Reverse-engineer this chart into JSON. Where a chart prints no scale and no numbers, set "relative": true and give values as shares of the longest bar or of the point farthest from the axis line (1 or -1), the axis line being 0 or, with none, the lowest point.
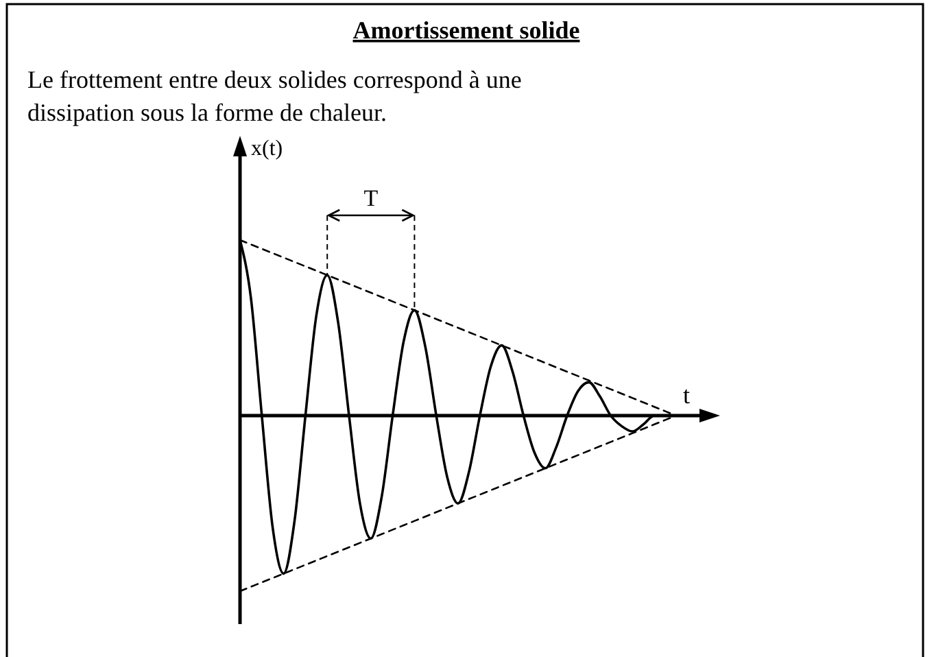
{
  "chart_data": {
    "type": "line",
    "relative": true,
    "title": "Amortissement solide",
    "subtitle": "Le frottement entre deux solides correspond à une dissipation sous la forme de chaleur.",
    "xlabel": "t",
    "ylabel": "x(t)",
    "annotations": [
      "T"
    ],
    "categories": [
      null,
      null,
      null,
      null,
      null,
      null,
      null,
      null,
      null,
      null,
      null,
      null,
      null,
      null,
      null,
      null,
      null,
      null,
      null,
      null,
      null,
      null,
      null,
      null,
      null,
      null,
      null,
      null,
      null,
      null,
      null,
      null,
      null,
      null,
      null,
      null,
      null,
      null,
      null,
      null,
      null
    ],
    "series": [
      {
        "color": "#000000",
        "line_style": "solid",
        "values": [
          1,
          0.67,
          0,
          -0.64,
          -0.9,
          -0.6,
          0,
          0.57,
          0.8,
          0.53,
          0,
          -0.5,
          -0.7,
          -0.46,
          0,
          0.42,
          0.6,
          0.39,
          0,
          -0.35,
          -0.5,
          -0.32,
          0,
          0.28,
          0.4,
          0.25,
          0,
          -0.21,
          -0.3,
          -0.18,
          0,
          0.14,
          0.19,
          0.11,
          0,
          -0.06,
          -0.09,
          -0.05,
          0,
          0,
          0
        ]
      },
      {
        "color": "#000000",
        "line_style": "dashed",
        "values": [
          1,
          0.975,
          0.95,
          0.925,
          0.9,
          0.875,
          0.85,
          0.825,
          0.8,
          0.775,
          0.75,
          0.725,
          0.7,
          0.675,
          0.65,
          0.625,
          0.6,
          0.575,
          0.55,
          0.525,
          0.5,
          0.475,
          0.45,
          0.425,
          0.4,
          0.375,
          0.35,
          0.325,
          0.3,
          0.275,
          0.25,
          0.225,
          0.2,
          0.175,
          0.15,
          0.125,
          0.1,
          0.075,
          0.05,
          0.025,
          0
        ]
      },
      {
        "color": "#000000",
        "line_style": "dashed",
        "values": [
          -1,
          -0.975,
          -0.95,
          -0.925,
          -0.9,
          -0.875,
          -0.85,
          -0.825,
          -0.8,
          -0.775,
          -0.75,
          -0.725,
          -0.7,
          -0.675,
          -0.65,
          -0.625,
          -0.6,
          -0.575,
          -0.55,
          -0.525,
          -0.5,
          -0.475,
          -0.45,
          -0.425,
          -0.4,
          -0.375,
          -0.35,
          -0.325,
          -0.3,
          -0.275,
          -0.25,
          -0.225,
          -0.2,
          -0.175,
          -0.15,
          -0.125,
          -0.1,
          -0.075,
          -0.05,
          -0.025,
          0
        ]
      }
    ]
  }
}
